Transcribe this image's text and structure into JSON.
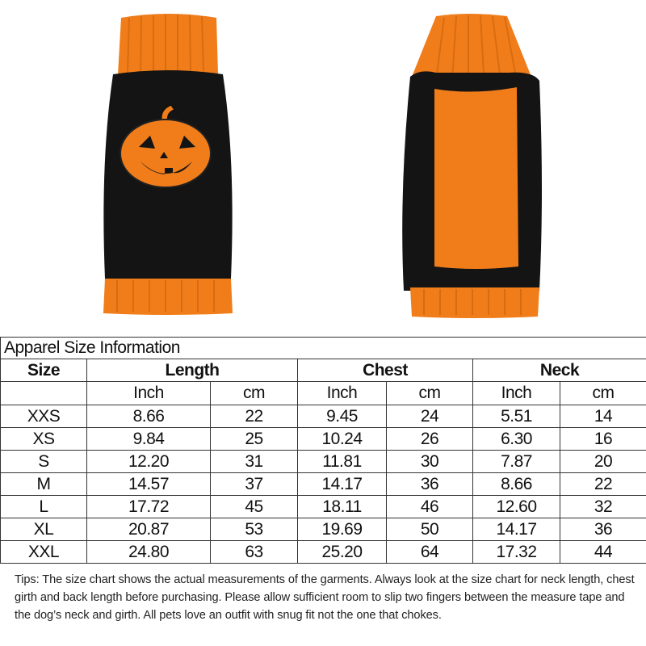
{
  "product_images": [
    {
      "view": "front",
      "motif": "pumpkin jack-o-lantern",
      "colors": {
        "body": "#141414",
        "trim": "#f07d1a"
      }
    },
    {
      "view": "back",
      "colors": {
        "body": "#141414",
        "panel": "#f07d1a"
      }
    }
  ],
  "table": {
    "title": "Apparel Size Information",
    "headers": [
      "Size",
      "Length",
      "Chest",
      "Neck"
    ],
    "subheaders": [
      "Inch",
      "cm",
      "Inch",
      "cm",
      "Inch",
      "cm"
    ],
    "rows": [
      [
        "XXS",
        "8.66",
        "22",
        "9.45",
        "24",
        "5.51",
        "14"
      ],
      [
        "XS",
        "9.84",
        "25",
        "10.24",
        "26",
        "6.30",
        "16"
      ],
      [
        "S",
        "12.20",
        "31",
        "11.81",
        "30",
        "7.87",
        "20"
      ],
      [
        "M",
        "14.57",
        "37",
        "14.17",
        "36",
        "8.66",
        "22"
      ],
      [
        "L",
        "17.72",
        "45",
        "18.11",
        "46",
        "12.60",
        "32"
      ],
      [
        "XL",
        "20.87",
        "53",
        "19.69",
        "50",
        "14.17",
        "36"
      ],
      [
        "XXL",
        "24.80",
        "63",
        "25.20",
        "64",
        "17.32",
        "44"
      ]
    ]
  },
  "tips": "Tips:  The size chart shows the actual measurements of the garments. Always look at the size chart for neck length, chest girth and back length before purchasing. Please allow sufficient room to slip two fingers between the measure tape and the dog’s neck and girth. All pets love an outfit with snug fit not the one that chokes."
}
